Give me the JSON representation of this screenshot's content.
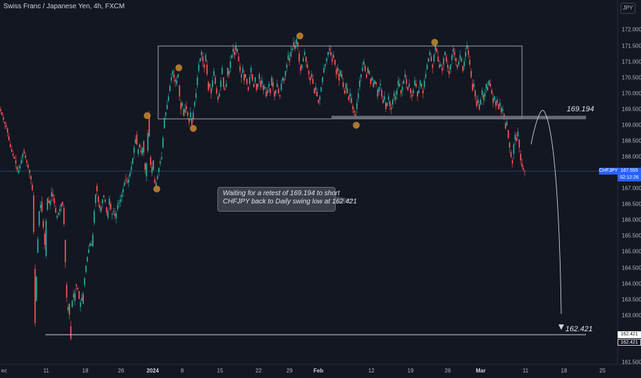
{
  "header": {
    "symbol_title": "Swiss Franc / Japanese Yen, 4h, FXCM",
    "currency": "JPY"
  },
  "y_axis": {
    "ticks": [
      "172.000",
      "171.500",
      "171.000",
      "170.500",
      "170.000",
      "169.500",
      "169.000",
      "168.500",
      "168.000",
      "167.000",
      "166.500",
      "166.000",
      "165.500",
      "165.000",
      "164.500",
      "164.000",
      "163.500",
      "163.000",
      "161.500"
    ]
  },
  "x_axis": {
    "ticks": [
      "ec",
      "11",
      "18",
      "26",
      "2024",
      "8",
      "15",
      "22",
      "29",
      "Feb",
      "12",
      "19",
      "26",
      "Mar",
      "11",
      "18",
      "25"
    ]
  },
  "price_labels": {
    "symbol": "CHFJPY",
    "last_price": "167.555",
    "countdown": "02:12:26",
    "target_a": "162.421",
    "target_b": "162.421"
  },
  "annotations": {
    "level_high": "169.194",
    "level_low": "162.421",
    "note_line1": "Waiting for a retest of 169.194 to short",
    "note_line2": "CHFJPY back to Daily swing low at 162.421"
  },
  "colors": {
    "background": "#131722",
    "up": "#26a69a",
    "down": "#ef5350",
    "marker": "#c8882e",
    "price_tag": "#2962ff",
    "level_line": "#787b86"
  },
  "chart_data": {
    "type": "candlestick",
    "title": "Swiss Franc / Japanese Yen, 4h, FXCM",
    "symbol": "CHFJPY",
    "ylim": [
      161.5,
      172.3
    ],
    "resistance_zone": [
      169.194,
      171.45
    ],
    "retest_level": 169.194,
    "target_level": 162.421,
    "last_price": 167.555,
    "price_path": [
      [
        0,
        169.5
      ],
      [
        2,
        169.4
      ],
      [
        6,
        169.1
      ],
      [
        10,
        168.9
      ],
      [
        14,
        168.4
      ],
      [
        18,
        168.1
      ],
      [
        22,
        167.9
      ],
      [
        26,
        167.5
      ],
      [
        30,
        167.8
      ],
      [
        34,
        168.2
      ],
      [
        38,
        167.9
      ],
      [
        42,
        167.6
      ],
      [
        45,
        167.3
      ],
      [
        48,
        166.8
      ],
      [
        50,
        164.5
      ],
      [
        51,
        162.8
      ],
      [
        52,
        163.5
      ],
      [
        54,
        165.0
      ],
      [
        57,
        166.3
      ],
      [
        60,
        166.6
      ],
      [
        62,
        166.0
      ],
      [
        64,
        165.6
      ],
      [
        66,
        164.9
      ],
      [
        67,
        166.0
      ],
      [
        69,
        166.7
      ],
      [
        72,
        166.5
      ],
      [
        75,
        166.9
      ],
      [
        78,
        166.7
      ],
      [
        82,
        166.1
      ],
      [
        86,
        166.3
      ],
      [
        90,
        166.6
      ],
      [
        92,
        166.4
      ],
      [
        94,
        165.4
      ],
      [
        96,
        164.0
      ],
      [
        98,
        163.2
      ],
      [
        100,
        163.4
      ],
      [
        102,
        162.7
      ],
      [
        103,
        162.3
      ],
      [
        104,
        163.3
      ],
      [
        106,
        163.7
      ],
      [
        108,
        163.5
      ],
      [
        110,
        164.0
      ],
      [
        114,
        163.8
      ],
      [
        116,
        163.3
      ],
      [
        118,
        163.6
      ],
      [
        120,
        163.4
      ],
      [
        122,
        164.0
      ],
      [
        125,
        164.6
      ],
      [
        128,
        165.0
      ],
      [
        131,
        165.3
      ],
      [
        134,
        165.2
      ],
      [
        137,
        166.3
      ],
      [
        140,
        167.1
      ],
      [
        143,
        166.6
      ],
      [
        146,
        166.3
      ],
      [
        150,
        166.8
      ],
      [
        153,
        166.6
      ],
      [
        156,
        166.1
      ],
      [
        159,
        166.7
      ],
      [
        162,
        166.2
      ],
      [
        165,
        166.3
      ],
      [
        168,
        166.1
      ],
      [
        171,
        166.5
      ],
      [
        174,
        166.6
      ],
      [
        178,
        166.9
      ],
      [
        182,
        167.3
      ],
      [
        186,
        167.2
      ],
      [
        189,
        167.5
      ],
      [
        192,
        167.8
      ],
      [
        195,
        168.3
      ],
      [
        198,
        168.7
      ],
      [
        200,
        168.1
      ],
      [
        202,
        168.4
      ],
      [
        204,
        168.2
      ],
      [
        206,
        168.1
      ],
      [
        208,
        168.5
      ],
      [
        210,
        167.8
      ],
      [
        212,
        167.4
      ],
      [
        214,
        168.2
      ],
      [
        216,
        169.3
      ],
      [
        218,
        168.0
      ],
      [
        220,
        167.5
      ],
      [
        222,
        167.9
      ],
      [
        224,
        167.3
      ],
      [
        226,
        167.1
      ],
      [
        229,
        167.4
      ],
      [
        232,
        167.8
      ],
      [
        235,
        168.0
      ],
      [
        237,
        168.6
      ],
      [
        239,
        169.2
      ],
      [
        242,
        169.5
      ],
      [
        245,
        169.9
      ],
      [
        248,
        170.4
      ],
      [
        251,
        170.7
      ],
      [
        253,
        170.5
      ],
      [
        256,
        170.3
      ],
      [
        259,
        170.6
      ],
      [
        261,
        169.9
      ],
      [
        263,
        169.5
      ],
      [
        265,
        169.7
      ],
      [
        267,
        169.3
      ],
      [
        270,
        169.6
      ],
      [
        272,
        169.4
      ],
      [
        275,
        169.1
      ],
      [
        277,
        169.4
      ],
      [
        279,
        169.0
      ],
      [
        282,
        169.6
      ],
      [
        285,
        170.0
      ],
      [
        287,
        170.5
      ],
      [
        289,
        170.9
      ],
      [
        291,
        171.1
      ],
      [
        293,
        171.3
      ],
      [
        295,
        171.0
      ],
      [
        297,
        170.8
      ],
      [
        299,
        171.2
      ],
      [
        301,
        170.6
      ],
      [
        303,
        170.1
      ],
      [
        305,
        170.3
      ],
      [
        307,
        170.0
      ],
      [
        309,
        170.4
      ],
      [
        311,
        170.7
      ],
      [
        313,
        170.3
      ],
      [
        315,
        170.0
      ],
      [
        317,
        169.8
      ],
      [
        319,
        170.0
      ],
      [
        321,
        170.4
      ],
      [
        323,
        170.8
      ],
      [
        325,
        170.2
      ],
      [
        327,
        170.1
      ],
      [
        329,
        170.3
      ],
      [
        331,
        170.8
      ],
      [
        333,
        170.6
      ],
      [
        335,
        171.0
      ],
      [
        337,
        171.2
      ],
      [
        339,
        171.4
      ],
      [
        341,
        171.2
      ],
      [
        343,
        171.5
      ],
      [
        345,
        171.3
      ],
      [
        347,
        171.0
      ],
      [
        349,
        170.7
      ],
      [
        351,
        170.5
      ],
      [
        353,
        170.8
      ],
      [
        355,
        170.4
      ],
      [
        357,
        170.6
      ],
      [
        359,
        170.3
      ],
      [
        361,
        170.1
      ],
      [
        363,
        170.5
      ],
      [
        365,
        170.8
      ],
      [
        367,
        170.4
      ],
      [
        369,
        170.2
      ],
      [
        371,
        170.5
      ],
      [
        373,
        170.1
      ],
      [
        375,
        170.3
      ],
      [
        377,
        170.6
      ],
      [
        379,
        170.2
      ],
      [
        381,
        170.4
      ],
      [
        383,
        170.1
      ],
      [
        385,
        170.2
      ],
      [
        387,
        169.9
      ],
      [
        389,
        170.1
      ],
      [
        391,
        170.3
      ],
      [
        393,
        170.0
      ],
      [
        395,
        170.5
      ],
      [
        397,
        170.2
      ],
      [
        399,
        169.9
      ],
      [
        401,
        170.1
      ],
      [
        403,
        170.3
      ],
      [
        405,
        170.0
      ],
      [
        407,
        169.9
      ],
      [
        409,
        170.3
      ],
      [
        411,
        170.5
      ],
      [
        413,
        170.4
      ],
      [
        415,
        170.7
      ],
      [
        417,
        170.9
      ],
      [
        419,
        171.2
      ],
      [
        421,
        171.0
      ],
      [
        423,
        171.3
      ],
      [
        425,
        171.4
      ],
      [
        427,
        171.6
      ],
      [
        429,
        171.4
      ],
      [
        431,
        171.7
      ],
      [
        433,
        171.5
      ],
      [
        435,
        171.0
      ],
      [
        437,
        170.7
      ],
      [
        439,
        170.9
      ],
      [
        441,
        171.1
      ],
      [
        443,
        171.3
      ],
      [
        445,
        171.0
      ],
      [
        447,
        170.8
      ],
      [
        449,
        170.6
      ],
      [
        451,
        170.4
      ],
      [
        453,
        170.6
      ],
      [
        455,
        170.3
      ],
      [
        457,
        170.0
      ],
      [
        459,
        170.2
      ],
      [
        461,
        169.9
      ],
      [
        463,
        169.7
      ],
      [
        465,
        169.9
      ],
      [
        467,
        170.2
      ],
      [
        469,
        170.5
      ],
      [
        471,
        170.8
      ],
      [
        473,
        170.9
      ],
      [
        475,
        171.1
      ],
      [
        477,
        171.3
      ],
      [
        479,
        171.4
      ],
      [
        481,
        171.2
      ],
      [
        483,
        171.0
      ],
      [
        485,
        171.2
      ],
      [
        487,
        170.9
      ],
      [
        489,
        170.6
      ],
      [
        491,
        170.8
      ],
      [
        493,
        170.4
      ],
      [
        495,
        170.7
      ],
      [
        497,
        170.5
      ],
      [
        499,
        170.2
      ],
      [
        501,
        170.0
      ],
      [
        503,
        170.3
      ],
      [
        505,
        170.0
      ],
      [
        507,
        169.8
      ],
      [
        509,
        170.0
      ],
      [
        511,
        169.7
      ],
      [
        513,
        169.5
      ],
      [
        515,
        169.4
      ],
      [
        517,
        169.3
      ],
      [
        519,
        169.7
      ],
      [
        521,
        170.0
      ],
      [
        523,
        170.4
      ],
      [
        525,
        170.6
      ],
      [
        527,
        170.8
      ],
      [
        529,
        171.0
      ],
      [
        531,
        170.7
      ],
      [
        533,
        170.5
      ],
      [
        535,
        170.8
      ],
      [
        537,
        170.6
      ],
      [
        539,
        170.3
      ],
      [
        541,
        170.5
      ],
      [
        543,
        170.2
      ],
      [
        545,
        170.4
      ],
      [
        547,
        170.3
      ],
      [
        549,
        169.9
      ],
      [
        551,
        170.2
      ],
      [
        553,
        170.3
      ],
      [
        555,
        169.9
      ],
      [
        557,
        169.7
      ],
      [
        559,
        169.9
      ],
      [
        561,
        169.5
      ],
      [
        563,
        169.7
      ],
      [
        565,
        169.9
      ],
      [
        567,
        169.6
      ],
      [
        569,
        169.5
      ],
      [
        571,
        169.8
      ],
      [
        573,
        170.0
      ],
      [
        575,
        169.8
      ],
      [
        577,
        170.1
      ],
      [
        579,
        170.4
      ],
      [
        581,
        170.2
      ],
      [
        583,
        170.0
      ],
      [
        585,
        170.2
      ],
      [
        587,
        170.4
      ],
      [
        589,
        170.6
      ],
      [
        591,
        170.3
      ],
      [
        593,
        170.1
      ],
      [
        595,
        170.3
      ],
      [
        597,
        170.0
      ],
      [
        599,
        169.9
      ],
      [
        601,
        170.1
      ],
      [
        603,
        170.4
      ],
      [
        605,
        170.2
      ],
      [
        607,
        169.9
      ],
      [
        609,
        170.1
      ],
      [
        611,
        170.4
      ],
      [
        613,
        170.2
      ],
      [
        615,
        170.0
      ],
      [
        617,
        170.4
      ],
      [
        619,
        170.6
      ],
      [
        621,
        170.9
      ],
      [
        623,
        171.1
      ],
      [
        625,
        171.3
      ],
      [
        627,
        171.0
      ],
      [
        629,
        170.8
      ],
      [
        631,
        171.2
      ],
      [
        633,
        171.5
      ],
      [
        635,
        171.3
      ],
      [
        637,
        171.0
      ],
      [
        639,
        170.8
      ],
      [
        641,
        170.9
      ],
      [
        643,
        170.7
      ],
      [
        645,
        171.1
      ],
      [
        647,
        171.3
      ],
      [
        649,
        171.0
      ],
      [
        651,
        170.8
      ],
      [
        653,
        170.6
      ],
      [
        655,
        170.9
      ],
      [
        657,
        171.2
      ],
      [
        659,
        171.4
      ],
      [
        661,
        171.2
      ],
      [
        663,
        171.0
      ],
      [
        665,
        170.8
      ],
      [
        667,
        171.0
      ],
      [
        669,
        171.2
      ],
      [
        671,
        171.0
      ],
      [
        673,
        170.7
      ],
      [
        675,
        171.0
      ],
      [
        677,
        171.3
      ],
      [
        679,
        171.5
      ],
      [
        681,
        171.2
      ],
      [
        683,
        170.9
      ],
      [
        685,
        170.5
      ],
      [
        687,
        170.1
      ],
      [
        689,
        170.3
      ],
      [
        691,
        169.9
      ],
      [
        693,
        169.6
      ],
      [
        695,
        169.8
      ],
      [
        697,
        169.5
      ],
      [
        699,
        169.8
      ],
      [
        701,
        170.1
      ],
      [
        703,
        169.8
      ],
      [
        705,
        170.0
      ],
      [
        707,
        170.3
      ],
      [
        709,
        170.1
      ],
      [
        711,
        170.4
      ],
      [
        713,
        170.2
      ],
      [
        715,
        170.0
      ],
      [
        717,
        169.7
      ],
      [
        719,
        169.9
      ],
      [
        721,
        169.6
      ],
      [
        723,
        169.8
      ],
      [
        725,
        169.5
      ],
      [
        727,
        169.7
      ],
      [
        729,
        169.4
      ],
      [
        731,
        169.5
      ],
      [
        733,
        169.2
      ],
      [
        735,
        168.9
      ],
      [
        737,
        169.1
      ],
      [
        739,
        168.6
      ],
      [
        741,
        168.3
      ],
      [
        743,
        168.0
      ],
      [
        745,
        167.8
      ],
      [
        747,
        168.4
      ],
      [
        749,
        168.7
      ],
      [
        751,
        168.5
      ],
      [
        753,
        168.8
      ],
      [
        755,
        168.3
      ],
      [
        757,
        167.9
      ],
      [
        759,
        167.7
      ],
      [
        761,
        167.6
      ],
      [
        763,
        167.55
      ]
    ],
    "swing_markers": [
      [
        214,
        169.3
      ],
      [
        228,
        167.0
      ],
      [
        260,
        170.8
      ],
      [
        281,
        168.9
      ],
      [
        436,
        171.8
      ],
      [
        518,
        169.0
      ],
      [
        632,
        171.6
      ]
    ],
    "projection_path": [
      [
        772,
        168.4
      ],
      [
        781,
        169.1
      ],
      [
        792,
        169.4
      ],
      [
        803,
        168.8
      ],
      [
        812,
        166.0
      ],
      [
        816,
        163.0
      ]
    ]
  }
}
